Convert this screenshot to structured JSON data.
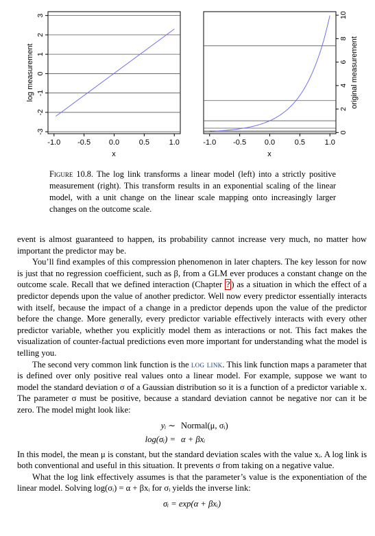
{
  "figure": {
    "left_panel": {
      "xlabel": "x",
      "ylabel": "log measurement",
      "x_ticks": [
        "-1.0",
        "-0.5",
        "0.0",
        "0.5",
        "1.0"
      ],
      "y_ticks": [
        "-3",
        "-2",
        "-1",
        "0",
        "1",
        "2",
        "3"
      ]
    },
    "right_panel": {
      "xlabel": "x",
      "ylabel": "original measurement",
      "x_ticks": [
        "-1.0",
        "-0.5",
        "0.0",
        "0.5",
        "1.0"
      ],
      "y_ticks": [
        "0",
        "2",
        "4",
        "6",
        "8",
        "10"
      ]
    },
    "line_color": "#6f6ff2",
    "grid_color": "#555555"
  },
  "chart_data": [
    {
      "type": "line",
      "title": "",
      "xlabel": "x",
      "ylabel": "log measurement",
      "xlim": [
        -1.1,
        1.1
      ],
      "ylim": [
        -3.1,
        3.2
      ],
      "hgrid": [
        -3,
        -2,
        -1,
        0,
        1,
        2,
        3
      ],
      "series": [
        {
          "x": [
            -0.97,
            1.0
          ],
          "y": [
            -2.2,
            2.3
          ]
        }
      ]
    },
    {
      "type": "line",
      "title": "",
      "xlabel": "x",
      "ylabel": "original measurement",
      "xlim": [
        -1.1,
        1.1
      ],
      "ylim": [
        -0.1,
        10.3
      ],
      "hgrid_log_levels": [
        -3,
        -2,
        -1,
        0,
        1,
        2
      ],
      "series": [
        {
          "function": "exp(2.3x)",
          "x_range": [
            -1.0,
            1.0
          ]
        }
      ]
    }
  ],
  "caption": {
    "label": "Figure 10.8.",
    "text": "The log link transforms a linear model (left) into a strictly positive measurement (right). This transform results in an exponential scaling of the linear model, with a unit change on the linear scale mapping onto increasingly larger changes on the outcome scale."
  },
  "body": {
    "p1": "event is almost guaranteed to happen, its probability cannot increase very much, no matter how important the predictor may be.",
    "p2a": "You’ll find examples of this compression phenomenon in later chapters. The key lesson for now is just that no regression coefficient, such as β, from a GLM ever produces a constant change on the outcome scale. Recall that we defined interaction (Chapter ",
    "p2_ref": "?",
    "p2b": ") as a situation in which the effect of a predictor depends upon the value of another predictor. Well now every predictor essentially interacts with itself, because the impact of a change in a predictor depends upon the value of the predictor before the change. More generally, every predictor variable effectively interacts with every other predictor variable, whether you explicitly model them as interactions or not. This fact makes the visualization of counter-factual predictions even more important for understanding what the model is telling you.",
    "p3a": "The second very common link function is the ",
    "p3_term": "log link",
    "p3b": ". This link function maps a parameter that is defined over only positive real values onto a linear model. For example, suppose we want to model the standard deviation σ of a Gaussian distribution so it is a function of a predictor variable x. The parameter σ must be positive, because a standard deviation cannot be negative nor can it be zero. The model might look like:",
    "eq1_lhs": "yᵢ ∼",
    "eq1_rhs": "Normal(μ, σᵢ)",
    "eq2_lhs": "log(σᵢ) =",
    "eq2_rhs": "α + βxᵢ",
    "p4": "In this model, the mean μ is constant, but the standard deviation scales with the value xᵢ. A log link is both conventional and useful in this situation. It prevents σ from taking on a negative value.",
    "p5": "What the log link effectively assumes is that the parameter’s value is the exponentiation of the linear model. Solving log(σᵢ) = α + βxᵢ for σᵢ yields the inverse link:",
    "eq3": "σᵢ = exp(α + βxᵢ)"
  }
}
